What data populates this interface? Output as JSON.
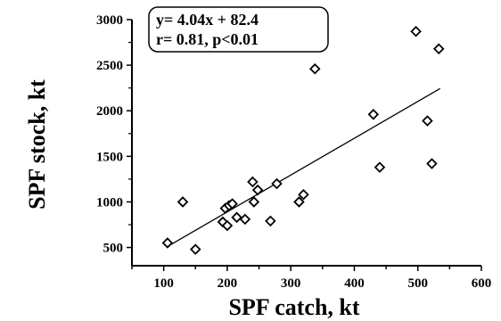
{
  "chart_data": {
    "type": "scatter",
    "xlabel": "SPF catch, kt",
    "ylabel": "SPF stock, kt",
    "xlim": [
      50,
      600
    ],
    "ylim": [
      300,
      3000
    ],
    "x_ticks": [
      100,
      200,
      300,
      400,
      500,
      600
    ],
    "y_ticks": [
      500,
      1000,
      1500,
      2000,
      2500,
      3000
    ],
    "marker": "diamond",
    "grid": false,
    "points": [
      {
        "x": 106,
        "y": 550
      },
      {
        "x": 130,
        "y": 1000
      },
      {
        "x": 150,
        "y": 480
      },
      {
        "x": 193,
        "y": 780
      },
      {
        "x": 197,
        "y": 930
      },
      {
        "x": 200,
        "y": 740
      },
      {
        "x": 203,
        "y": 960
      },
      {
        "x": 208,
        "y": 980
      },
      {
        "x": 215,
        "y": 830
      },
      {
        "x": 228,
        "y": 810
      },
      {
        "x": 240,
        "y": 1220
      },
      {
        "x": 242,
        "y": 1000
      },
      {
        "x": 248,
        "y": 1130
      },
      {
        "x": 268,
        "y": 790
      },
      {
        "x": 278,
        "y": 1200
      },
      {
        "x": 313,
        "y": 1000
      },
      {
        "x": 320,
        "y": 1080
      },
      {
        "x": 338,
        "y": 2460
      },
      {
        "x": 430,
        "y": 1960
      },
      {
        "x": 440,
        "y": 1380
      },
      {
        "x": 497,
        "y": 2870
      },
      {
        "x": 515,
        "y": 1890
      },
      {
        "x": 522,
        "y": 1420
      },
      {
        "x": 533,
        "y": 2680
      }
    ],
    "regression": {
      "slope": 4.04,
      "intercept": 82.4,
      "x_range": [
        110,
        535
      ]
    },
    "annotation": {
      "line1": "y= 4.04x + 82.4",
      "line2": "r= 0.81, p<0.01"
    }
  }
}
